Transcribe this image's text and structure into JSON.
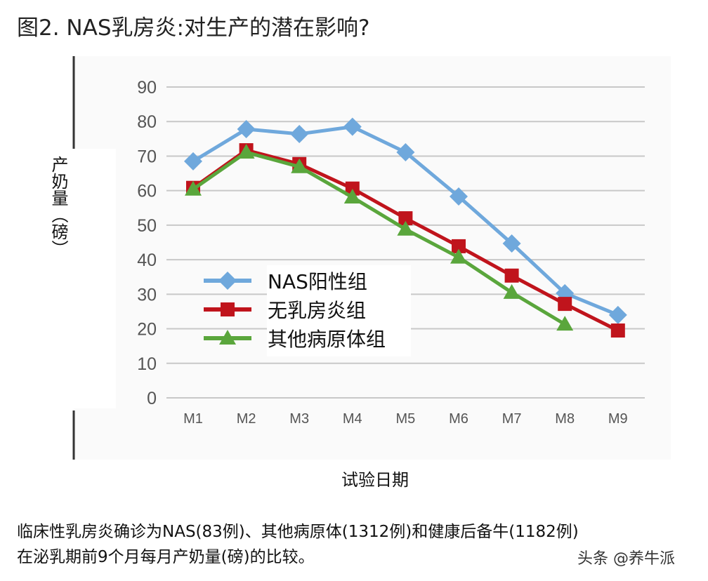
{
  "title": "图2. NAS乳房炎:对生产的潜在影响?",
  "caption": {
    "line1": "临床性乳房炎确诊为NAS(83例)、其他病原体(1312例)和健康后备牛(1182例)",
    "line2": "在泌乳期前9个月每月产奶量(磅)的比较。"
  },
  "watermark": "头条 @养牛派",
  "chart_data": {
    "type": "line",
    "title": "",
    "xlabel": "试验日期",
    "ylabel": "产奶量（磅）",
    "ylim": [
      0,
      90
    ],
    "yticks": [
      0,
      10,
      20,
      30,
      40,
      50,
      60,
      70,
      80,
      90
    ],
    "grid": true,
    "legend_position": "center-left",
    "categories": [
      "M1",
      "M2",
      "M3",
      "M4",
      "M5",
      "M6",
      "M7",
      "M8",
      "M9"
    ],
    "series": [
      {
        "name": "NAS阳性组",
        "color": "#6fa8dc",
        "marker": "diamond",
        "values": [
          68.5,
          77.8,
          76.4,
          78.5,
          71.1,
          58.3,
          44.7,
          30.3,
          24.0
        ]
      },
      {
        "name": "无乳房炎组",
        "color": "#c0141c",
        "marker": "square",
        "values": [
          60.8,
          71.7,
          67.7,
          60.6,
          52.0,
          43.9,
          35.4,
          27.2,
          19.5
        ]
      },
      {
        "name": "其他病原体组",
        "color": "#5aa63c",
        "marker": "triangle",
        "values": [
          60.4,
          71.1,
          66.9,
          58.1,
          48.8,
          40.7,
          30.5,
          21.3,
          null
        ]
      }
    ]
  }
}
